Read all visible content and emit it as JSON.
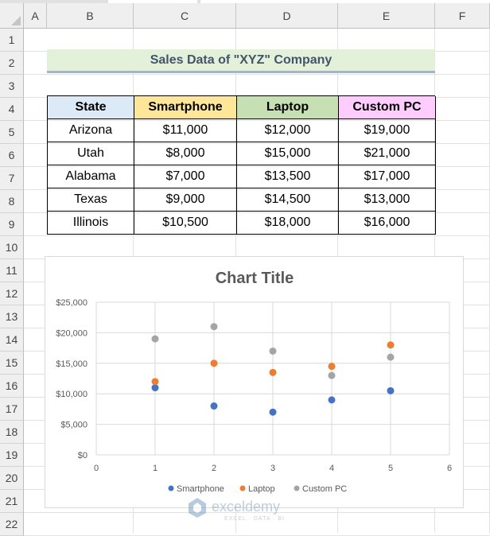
{
  "sheet": {
    "columns": [
      "A",
      "B",
      "C",
      "D",
      "E",
      "F"
    ],
    "rows": [
      "1",
      "2",
      "3",
      "4",
      "5",
      "6",
      "7",
      "8",
      "9",
      "10",
      "11",
      "12",
      "13",
      "14",
      "15",
      "16",
      "17",
      "18",
      "19",
      "20",
      "21",
      "22"
    ]
  },
  "title": "Sales Data of \"XYZ\" Company",
  "table": {
    "headers": [
      "State",
      "Smartphone",
      "Laptop",
      "Custom PC"
    ],
    "header_colors": [
      "#dce9f6",
      "#ffe699",
      "#c6e0b4",
      "#ffccff"
    ],
    "rows": [
      [
        "Arizona",
        "$11,000",
        "$12,000",
        "$19,000"
      ],
      [
        "Utah",
        "$8,000",
        "$15,000",
        "$21,000"
      ],
      [
        "Alabama",
        "$7,000",
        "$13,500",
        "$17,000"
      ],
      [
        "Texas",
        "$9,000",
        "$14,500",
        "$13,000"
      ],
      [
        "Illinois",
        "$10,500",
        "$18,000",
        "$16,000"
      ]
    ]
  },
  "chart_data": {
    "type": "scatter",
    "title": "Chart Title",
    "xlim": [
      0,
      6
    ],
    "ylim": [
      0,
      25000
    ],
    "x_ticks": [
      "0",
      "1",
      "2",
      "3",
      "4",
      "5",
      "6"
    ],
    "y_ticks": [
      "$0",
      "$5,000",
      "$10,000",
      "$15,000",
      "$20,000",
      "$25,000"
    ],
    "grid": true,
    "legend_position": "bottom",
    "series": [
      {
        "name": "Smartphone",
        "color": "#4472c4",
        "x": [
          1,
          2,
          3,
          4,
          5
        ],
        "y": [
          11000,
          8000,
          7000,
          9000,
          10500
        ]
      },
      {
        "name": "Laptop",
        "color": "#ed7d31",
        "x": [
          1,
          2,
          3,
          4,
          5
        ],
        "y": [
          12000,
          15000,
          13500,
          14500,
          18000
        ]
      },
      {
        "name": "Custom PC",
        "color": "#a5a5a5",
        "x": [
          1,
          2,
          3,
          4,
          5
        ],
        "y": [
          19000,
          21000,
          17000,
          13000,
          16000
        ]
      }
    ]
  },
  "watermark": {
    "brand": "exceldemy",
    "tagline": "EXCEL · DATA · BI"
  }
}
